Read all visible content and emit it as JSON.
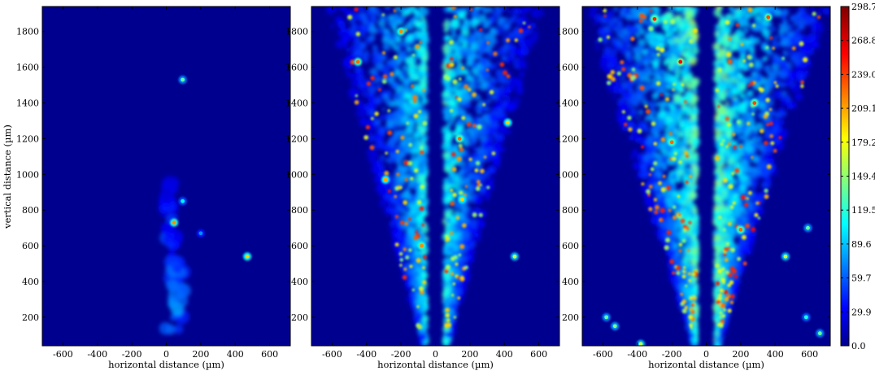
{
  "chart_data": {
    "type": "heatmap",
    "xlabel": "horizontal distance (µm)",
    "ylabel": "vertical distance (µm)",
    "xlim": [
      -720,
      720
    ],
    "ylim": [
      1940,
      40
    ],
    "x_ticks": [
      -600,
      -400,
      -200,
      0,
      200,
      400,
      600
    ],
    "y_ticks": [
      200,
      400,
      600,
      800,
      1000,
      1200,
      1400,
      1600,
      1800
    ],
    "colorbar": {
      "ticks": [
        "298.7",
        "268.8",
        "239.0",
        "209.1",
        "179.2",
        "149.4",
        "119.5",
        "89.6",
        "59.7",
        "29.9",
        "0.0"
      ],
      "min": 0,
      "max": 298.7,
      "colormap": "jet"
    },
    "panels": [
      {
        "id": "panel-1",
        "description_shape": "small-plume",
        "plume": {
          "x_center": 40,
          "y_top": 120,
          "y_bottom": 960,
          "half_width": 50,
          "peak_intensity": 90
        },
        "hotspots": [
          {
            "x": 45,
            "y": 730,
            "value": 220
          },
          {
            "x": 470,
            "y": 540,
            "value": 200
          },
          {
            "x": 95,
            "y": 1530,
            "value": 140
          },
          {
            "x": 200,
            "y": 670,
            "value": 80
          },
          {
            "x": 95,
            "y": 850,
            "value": 110
          }
        ]
      },
      {
        "id": "panel-2",
        "description_shape": "split-cone",
        "plume": {
          "gap_half_width": 60,
          "top_y": 40,
          "bottom_y": 1940,
          "spread_at_bottom": 560,
          "peak_intensity": 140
        },
        "hotspots": [
          {
            "x": -80,
            "y": 600,
            "value": 220
          },
          {
            "x": 155,
            "y": 860,
            "value": 200
          },
          {
            "x": 140,
            "y": 1200,
            "value": 230
          },
          {
            "x": -290,
            "y": 970,
            "value": 210
          },
          {
            "x": -450,
            "y": 1630,
            "value": 230
          },
          {
            "x": 460,
            "y": 540,
            "value": 170
          },
          {
            "x": -200,
            "y": 1800,
            "value": 220
          },
          {
            "x": 420,
            "y": 1290,
            "value": 200
          }
        ]
      },
      {
        "id": "panel-3",
        "description_shape": "split-cone-dense",
        "plume": {
          "gap_half_width": 60,
          "top_y": 40,
          "bottom_y": 1940,
          "spread_at_bottom": 640,
          "peak_intensity": 165
        },
        "hotspots": [
          {
            "x": -380,
            "y": 50,
            "value": 170
          },
          {
            "x": -530,
            "y": 150,
            "value": 150
          },
          {
            "x": -580,
            "y": 200,
            "value": 140
          },
          {
            "x": 460,
            "y": 540,
            "value": 170
          },
          {
            "x": 200,
            "y": 690,
            "value": 230
          },
          {
            "x": -150,
            "y": 1630,
            "value": 260
          },
          {
            "x": -300,
            "y": 1870,
            "value": 250
          },
          {
            "x": 360,
            "y": 1880,
            "value": 240
          },
          {
            "x": 660,
            "y": 110,
            "value": 140
          },
          {
            "x": 580,
            "y": 200,
            "value": 120
          },
          {
            "x": 590,
            "y": 700,
            "value": 140
          },
          {
            "x": -200,
            "y": 1180,
            "value": 230
          },
          {
            "x": 280,
            "y": 1400,
            "value": 240
          }
        ]
      }
    ]
  }
}
